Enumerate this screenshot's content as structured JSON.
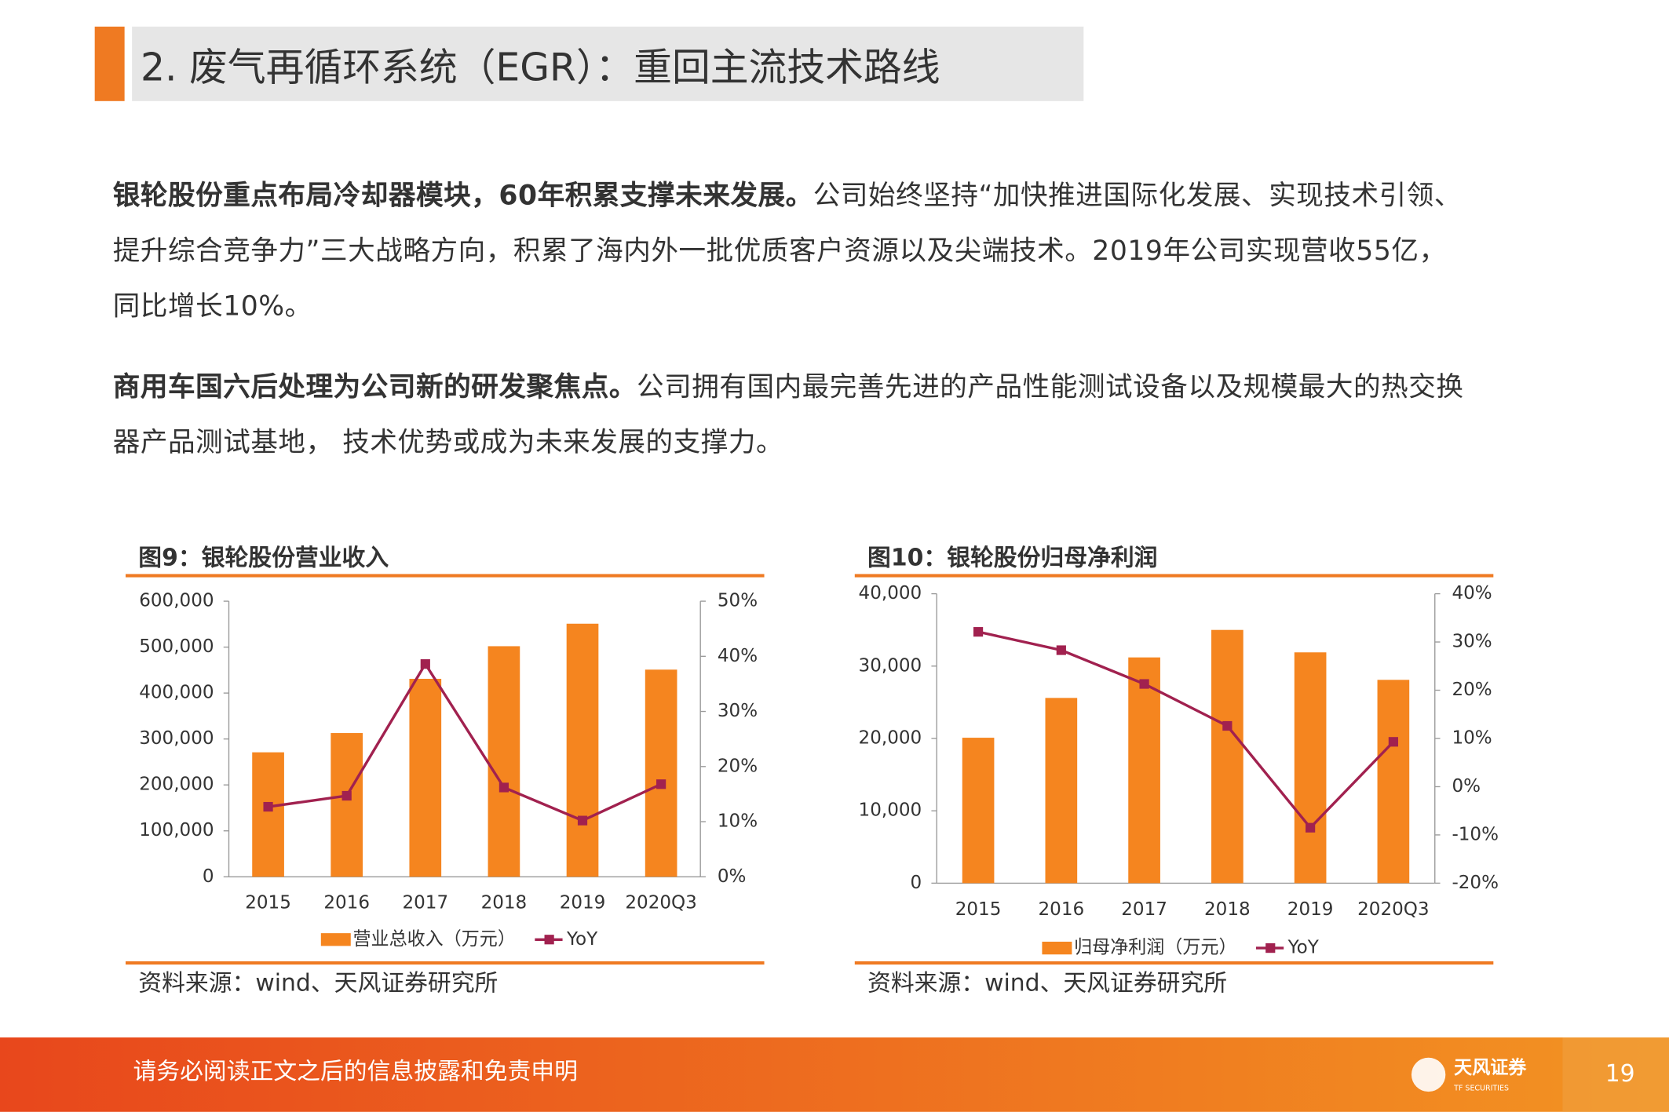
{
  "header": {
    "title": "2. 废气再循环系统（EGR）：重回主流技术路线"
  },
  "paragraphs": [
    {
      "bold": "银轮股份重点布局冷却器模块，60年积累支撑未来发展。",
      "text": "公司始终坚持“加快推进国际化发展、实现技术引领、提升综合竞争力”三大战略方向，积累了海内外一批优质客户资源以及尖端技术。2019年公司实现营收55亿，同比增长10%。"
    },
    {
      "bold": "商用车国六后处理为公司新的研发聚焦点。",
      "text": "公司拥有国内最完善先进的产品性能测试设备以及规模最大的热交换器产品测试基地， 技术优势或成为未来发展的支撑力。"
    }
  ],
  "chart_data": [
    {
      "type": "bar",
      "title": "图9：银轮股份营业收入",
      "source": "资料来源：wind、天风证券研究所",
      "categories": [
        "2015",
        "2016",
        "2017",
        "2018",
        "2019",
        "2020Q3"
      ],
      "series": [
        {
          "name": "营业总收入（万元）",
          "color": "#f5851f",
          "values": [
            271000,
            313000,
            431000,
            502000,
            551000,
            451000
          ]
        },
        {
          "name": "YoY",
          "color": "#a1214f",
          "axis": "y2",
          "values": [
            12.7,
            14.7,
            38.6,
            16.2,
            10.2,
            16.8
          ]
        }
      ],
      "ylim": [
        0,
        600000
      ],
      "yticks": [
        0,
        {
          "value": 100000,
          "label": "100,000"
        },
        {
          "value": 200000,
          "label": "200,000"
        },
        {
          "value": 300000,
          "label": "300,000"
        },
        {
          "value": 400000,
          "label": "400,000"
        },
        {
          "value": 500000,
          "label": "500,000"
        },
        {
          "value": 600000,
          "label": "600,000"
        }
      ],
      "y2lim": [
        0,
        50
      ],
      "y2ticks": [
        {
          "value": 0,
          "label": "0%"
        },
        {
          "value": 10,
          "label": "10%"
        },
        {
          "value": 20,
          "label": "20%"
        },
        {
          "value": 30,
          "label": "30%"
        },
        {
          "value": 40,
          "label": "40%"
        },
        {
          "value": 50,
          "label": "50%"
        }
      ]
    },
    {
      "type": "bar",
      "title": "图10：银轮股份归母净利润",
      "source": "资料来源：wind、天风证券研究所",
      "categories": [
        "2015",
        "2016",
        "2017",
        "2018",
        "2019",
        "2020Q3"
      ],
      "series": [
        {
          "name": "归母净利润（万元）",
          "color": "#f5851f",
          "values": [
            20100,
            25600,
            31200,
            35000,
            31900,
            28100
          ]
        },
        {
          "name": "YoY",
          "color": "#a1214f",
          "axis": "y2",
          "values": [
            32.1,
            28.3,
            21.3,
            12.6,
            -8.5,
            9.3
          ]
        }
      ],
      "ylim": [
        0,
        40000
      ],
      "yticks": [
        0,
        {
          "value": 10000,
          "label": "10,000"
        },
        {
          "value": 20000,
          "label": "20,000"
        },
        {
          "value": 30000,
          "label": "30,000"
        },
        {
          "value": 40000,
          "label": "40,000"
        }
      ],
      "y2lim": [
        -20,
        40
      ],
      "y2ticks": [
        {
          "value": -20,
          "label": "-20%"
        },
        {
          "value": -10,
          "label": "-10%"
        },
        {
          "value": 0,
          "label": "0%"
        },
        {
          "value": 10,
          "label": "10%"
        },
        {
          "value": 20,
          "label": "20%"
        },
        {
          "value": 30,
          "label": "30%"
        },
        {
          "value": 40,
          "label": "40%"
        }
      ]
    }
  ],
  "footer": {
    "disclaimer": "请务必阅读正文之后的信息披露和免责申明",
    "logo": "天风证券",
    "logo_sub": "TF SECURITIES",
    "page": "19"
  }
}
